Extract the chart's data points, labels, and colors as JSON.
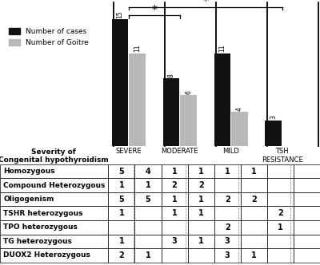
{
  "categories": [
    "SEVERE",
    "MODERATE",
    "MILD",
    "TSH\nRESISTANCE"
  ],
  "cases": [
    15,
    8,
    11,
    3
  ],
  "goitre": [
    11,
    6,
    4,
    0
  ],
  "bar_color_cases": "#111111",
  "bar_color_goitre": "#b8b8b8",
  "legend_cases": "Number of cases",
  "legend_goitre": "Number of Goitre",
  "ylim": [
    0,
    17
  ],
  "table_rows": [
    "Homozygous",
    "Compound Heterozygous",
    "Oligogenism",
    "TSHR heterozygous",
    "TPO heterozygous",
    "TG heterozygous",
    "DUOX2 Heterozygous"
  ],
  "table_data": [
    [
      "5",
      "4",
      "1",
      "1",
      "1",
      "1",
      "",
      ""
    ],
    [
      "1",
      "1",
      "2",
      "2",
      "",
      "",
      "",
      ""
    ],
    [
      "5",
      "5",
      "1",
      "1",
      "2",
      "2",
      "",
      ""
    ],
    [
      "1",
      "",
      "1",
      "1",
      "",
      "",
      "2",
      ""
    ],
    [
      "",
      "",
      "",
      "",
      "2",
      "",
      "1",
      ""
    ],
    [
      "1",
      "",
      "3",
      "1",
      "3",
      "",
      "",
      ""
    ],
    [
      "2",
      "1",
      "",
      "",
      "3",
      "1",
      "",
      ""
    ]
  ],
  "severity_label": "Severity of\nCongenital hypothyroidism"
}
